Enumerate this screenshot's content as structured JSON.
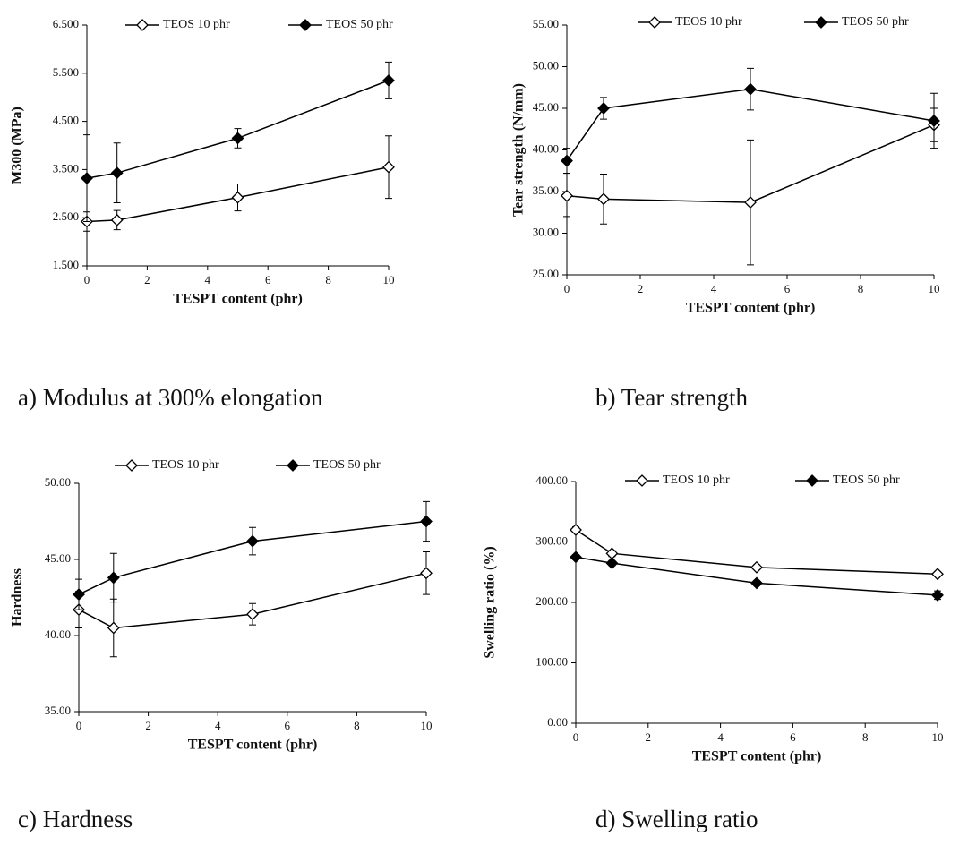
{
  "chart_data": [
    {
      "type": "line",
      "caption": "a) Modulus at 300% elongation",
      "x_label": "TESPT content (phr)",
      "y_label": "M300 (MPa)",
      "x": [
        0,
        1,
        5,
        10
      ],
      "xlim": [
        0,
        10
      ],
      "xticks": [
        0,
        2,
        4,
        6,
        8,
        10
      ],
      "ylim": [
        1.5,
        6.5
      ],
      "yticks": [
        {
          "value": 1.5,
          "label": "1.500"
        },
        {
          "value": 2.5,
          "label": "2.500"
        },
        {
          "value": 3.5,
          "label": "3.500"
        },
        {
          "value": 4.5,
          "label": "4.500"
        },
        {
          "value": 5.5,
          "label": "5.500"
        },
        {
          "value": 6.5,
          "label": "6.500"
        }
      ],
      "series": [
        {
          "name": "TEOS 10 phr",
          "color": "#000000",
          "marker": "diamond-open",
          "values": [
            2.42,
            2.45,
            2.92,
            3.55
          ],
          "errors": [
            0.2,
            0.2,
            0.28,
            0.65
          ]
        },
        {
          "name": "TEOS 50 phr",
          "color": "#000000",
          "marker": "diamond-filled",
          "values": [
            3.32,
            3.43,
            4.15,
            5.35
          ],
          "errors": [
            0.9,
            0.62,
            0.2,
            0.38
          ]
        }
      ]
    },
    {
      "type": "line",
      "caption": "b) Tear strength",
      "x_label": "TESPT content (phr)",
      "y_label": "Tear strength (N/mm)",
      "x": [
        0,
        1,
        5,
        10
      ],
      "xlim": [
        0,
        10
      ],
      "xticks": [
        0,
        2,
        4,
        6,
        8,
        10
      ],
      "ylim": [
        25,
        55
      ],
      "yticks": [
        {
          "value": 25,
          "label": "25.00"
        },
        {
          "value": 30,
          "label": "30.00"
        },
        {
          "value": 35,
          "label": "35.00"
        },
        {
          "value": 40,
          "label": "40.00"
        },
        {
          "value": 45,
          "label": "45.00"
        },
        {
          "value": 50,
          "label": "50.00"
        },
        {
          "value": 55,
          "label": "55.00"
        }
      ],
      "series": [
        {
          "name": "TEOS 10 phr",
          "color": "#000000",
          "marker": "diamond-open",
          "values": [
            34.5,
            34.1,
            33.7,
            43.0
          ],
          "errors": [
            2.5,
            3.0,
            7.5,
            2.0
          ]
        },
        {
          "name": "TEOS 50 phr",
          "color": "#000000",
          "marker": "diamond-filled",
          "values": [
            38.7,
            45.0,
            47.3,
            43.5
          ],
          "errors": [
            1.5,
            1.3,
            2.5,
            3.3
          ]
        }
      ]
    },
    {
      "type": "line",
      "caption": "c) Hardness",
      "x_label": "TESPT content (phr)",
      "y_label": "Hardness",
      "x": [
        0,
        1,
        5,
        10
      ],
      "xlim": [
        0,
        10
      ],
      "xticks": [
        0,
        2,
        4,
        6,
        8,
        10
      ],
      "ylim": [
        35,
        50
      ],
      "yticks": [
        {
          "value": 35,
          "label": "35.00"
        },
        {
          "value": 40,
          "label": "40.00"
        },
        {
          "value": 45,
          "label": "45.00"
        },
        {
          "value": 50,
          "label": "50.00"
        }
      ],
      "series": [
        {
          "name": "TEOS 10 phr",
          "color": "#000000",
          "marker": "diamond-open",
          "values": [
            41.7,
            40.5,
            41.4,
            44.1
          ],
          "errors": [
            1.2,
            1.9,
            0.7,
            1.4
          ]
        },
        {
          "name": "TEOS 50 phr",
          "color": "#000000",
          "marker": "diamond-filled",
          "values": [
            42.7,
            43.8,
            46.2,
            47.5
          ],
          "errors": [
            1.0,
            1.6,
            0.9,
            1.3
          ]
        }
      ]
    },
    {
      "type": "line",
      "caption": "d) Swelling ratio",
      "x_label": "TESPT content (phr)",
      "y_label": "Swelling ratio (%)",
      "x": [
        0,
        1,
        5,
        10
      ],
      "xlim": [
        0,
        10
      ],
      "xticks": [
        0,
        2,
        4,
        6,
        8,
        10
      ],
      "ylim": [
        0,
        400
      ],
      "yticks": [
        {
          "value": 0,
          "label": "0.00"
        },
        {
          "value": 100,
          "label": "100.00"
        },
        {
          "value": 200,
          "label": "200.00"
        },
        {
          "value": 300,
          "label": "300.00"
        },
        {
          "value": 400,
          "label": "400.00"
        }
      ],
      "series": [
        {
          "name": "TEOS 10 phr",
          "color": "#000000",
          "marker": "diamond-open",
          "values": [
            320,
            281,
            258,
            247
          ],
          "errors": [
            5,
            5,
            4,
            3
          ]
        },
        {
          "name": "TEOS 50 phr",
          "color": "#000000",
          "marker": "diamond-filled",
          "values": [
            275,
            265,
            232,
            212
          ],
          "errors": [
            4,
            4,
            4,
            7
          ]
        }
      ]
    }
  ]
}
